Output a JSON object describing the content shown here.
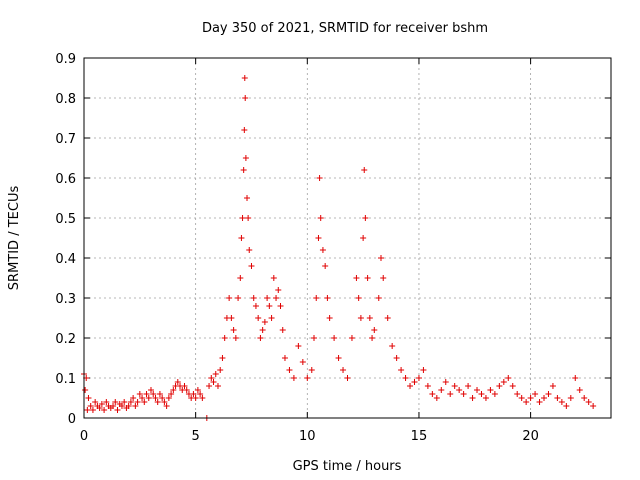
{
  "chart_data": {
    "type": "scatter",
    "title": "Day 350 of 2021, SRMTID for receiver bshm",
    "xlabel": "GPS time / hours",
    "ylabel": "SRMTID / TECUs",
    "xlim": [
      0,
      23.6
    ],
    "ylim": [
      0,
      0.9
    ],
    "x_ticks": [
      0,
      5,
      10,
      15,
      20
    ],
    "y_ticks": [
      0,
      0.1,
      0.2,
      0.3,
      0.4,
      0.5,
      0.6,
      0.7,
      0.8,
      0.9
    ],
    "x_tick_labels": [
      "0",
      "5",
      "10",
      "15",
      "20"
    ],
    "y_tick_labels": [
      "0",
      "0.1",
      "0.2",
      "0.3",
      "0.4",
      "0.5",
      "0.6",
      "0.7",
      "0.8",
      "0.9"
    ],
    "grid": true,
    "marker": "+",
    "color": "#e00000",
    "series": [
      {
        "name": "SRMTID",
        "points": [
          [
            0.0,
            0.11
          ],
          [
            0.05,
            0.07
          ],
          [
            0.1,
            0.1
          ],
          [
            0.15,
            0.02
          ],
          [
            0.2,
            0.05
          ],
          [
            0.3,
            0.03
          ],
          [
            0.4,
            0.02
          ],
          [
            0.5,
            0.04
          ],
          [
            0.6,
            0.03
          ],
          [
            0.7,
            0.025
          ],
          [
            0.8,
            0.035
          ],
          [
            0.9,
            0.02
          ],
          [
            1.0,
            0.04
          ],
          [
            1.1,
            0.03
          ],
          [
            1.2,
            0.025
          ],
          [
            1.3,
            0.03
          ],
          [
            1.4,
            0.04
          ],
          [
            1.5,
            0.02
          ],
          [
            1.6,
            0.035
          ],
          [
            1.7,
            0.03
          ],
          [
            1.8,
            0.04
          ],
          [
            1.9,
            0.025
          ],
          [
            2.0,
            0.03
          ],
          [
            2.1,
            0.04
          ],
          [
            2.2,
            0.05
          ],
          [
            2.3,
            0.03
          ],
          [
            2.4,
            0.04
          ],
          [
            2.5,
            0.06
          ],
          [
            2.6,
            0.05
          ],
          [
            2.7,
            0.04
          ],
          [
            2.8,
            0.06
          ],
          [
            2.9,
            0.05
          ],
          [
            3.0,
            0.07
          ],
          [
            3.1,
            0.06
          ],
          [
            3.2,
            0.05
          ],
          [
            3.3,
            0.04
          ],
          [
            3.4,
            0.06
          ],
          [
            3.5,
            0.05
          ],
          [
            3.6,
            0.04
          ],
          [
            3.7,
            0.03
          ],
          [
            3.8,
            0.05
          ],
          [
            3.9,
            0.06
          ],
          [
            4.0,
            0.07
          ],
          [
            4.1,
            0.08
          ],
          [
            4.2,
            0.09
          ],
          [
            4.3,
            0.08
          ],
          [
            4.4,
            0.07
          ],
          [
            4.5,
            0.08
          ],
          [
            4.6,
            0.07
          ],
          [
            4.7,
            0.06
          ],
          [
            4.8,
            0.05
          ],
          [
            4.9,
            0.06
          ],
          [
            5.0,
            0.05
          ],
          [
            5.1,
            0.07
          ],
          [
            5.2,
            0.06
          ],
          [
            5.3,
            0.05
          ],
          [
            5.5,
            0.0
          ],
          [
            5.6,
            0.08
          ],
          [
            5.7,
            0.1
          ],
          [
            5.8,
            0.09
          ],
          [
            5.9,
            0.11
          ],
          [
            6.0,
            0.08
          ],
          [
            6.1,
            0.12
          ],
          [
            6.2,
            0.15
          ],
          [
            6.3,
            0.2
          ],
          [
            6.4,
            0.25
          ],
          [
            6.5,
            0.3
          ],
          [
            6.6,
            0.25
          ],
          [
            6.7,
            0.22
          ],
          [
            6.8,
            0.2
          ],
          [
            6.9,
            0.3
          ],
          [
            7.0,
            0.35
          ],
          [
            7.05,
            0.45
          ],
          [
            7.1,
            0.5
          ],
          [
            7.15,
            0.62
          ],
          [
            7.18,
            0.72
          ],
          [
            7.2,
            0.85
          ],
          [
            7.22,
            0.8
          ],
          [
            7.25,
            0.65
          ],
          [
            7.3,
            0.55
          ],
          [
            7.35,
            0.5
          ],
          [
            7.4,
            0.42
          ],
          [
            7.5,
            0.38
          ],
          [
            7.6,
            0.3
          ],
          [
            7.7,
            0.28
          ],
          [
            7.8,
            0.25
          ],
          [
            7.9,
            0.2
          ],
          [
            8.0,
            0.22
          ],
          [
            8.1,
            0.24
          ],
          [
            8.2,
            0.3
          ],
          [
            8.3,
            0.28
          ],
          [
            8.4,
            0.25
          ],
          [
            8.5,
            0.35
          ],
          [
            8.6,
            0.3
          ],
          [
            8.7,
            0.32
          ],
          [
            8.8,
            0.28
          ],
          [
            8.9,
            0.22
          ],
          [
            9.0,
            0.15
          ],
          [
            9.2,
            0.12
          ],
          [
            9.4,
            0.1
          ],
          [
            9.6,
            0.18
          ],
          [
            9.8,
            0.14
          ],
          [
            10.0,
            0.1
          ],
          [
            10.2,
            0.12
          ],
          [
            10.3,
            0.2
          ],
          [
            10.4,
            0.3
          ],
          [
            10.5,
            0.45
          ],
          [
            10.55,
            0.6
          ],
          [
            10.6,
            0.5
          ],
          [
            10.7,
            0.42
          ],
          [
            10.8,
            0.38
          ],
          [
            10.9,
            0.3
          ],
          [
            11.0,
            0.25
          ],
          [
            11.2,
            0.2
          ],
          [
            11.4,
            0.15
          ],
          [
            11.6,
            0.12
          ],
          [
            11.8,
            0.1
          ],
          [
            12.0,
            0.2
          ],
          [
            12.2,
            0.35
          ],
          [
            12.3,
            0.3
          ],
          [
            12.4,
            0.25
          ],
          [
            12.5,
            0.45
          ],
          [
            12.55,
            0.62
          ],
          [
            12.6,
            0.5
          ],
          [
            12.7,
            0.35
          ],
          [
            12.8,
            0.25
          ],
          [
            12.9,
            0.2
          ],
          [
            13.0,
            0.22
          ],
          [
            13.2,
            0.3
          ],
          [
            13.3,
            0.4
          ],
          [
            13.4,
            0.35
          ],
          [
            13.6,
            0.25
          ],
          [
            13.8,
            0.18
          ],
          [
            14.0,
            0.15
          ],
          [
            14.2,
            0.12
          ],
          [
            14.4,
            0.1
          ],
          [
            14.6,
            0.08
          ],
          [
            14.8,
            0.09
          ],
          [
            15.0,
            0.1
          ],
          [
            15.2,
            0.12
          ],
          [
            15.4,
            0.08
          ],
          [
            15.6,
            0.06
          ],
          [
            15.8,
            0.05
          ],
          [
            16.0,
            0.07
          ],
          [
            16.2,
            0.09
          ],
          [
            16.4,
            0.06
          ],
          [
            16.6,
            0.08
          ],
          [
            16.8,
            0.07
          ],
          [
            17.0,
            0.06
          ],
          [
            17.2,
            0.08
          ],
          [
            17.4,
            0.05
          ],
          [
            17.6,
            0.07
          ],
          [
            17.8,
            0.06
          ],
          [
            18.0,
            0.05
          ],
          [
            18.2,
            0.07
          ],
          [
            18.4,
            0.06
          ],
          [
            18.6,
            0.08
          ],
          [
            18.8,
            0.09
          ],
          [
            19.0,
            0.1
          ],
          [
            19.2,
            0.08
          ],
          [
            19.4,
            0.06
          ],
          [
            19.6,
            0.05
          ],
          [
            19.8,
            0.04
          ],
          [
            20.0,
            0.05
          ],
          [
            20.2,
            0.06
          ],
          [
            20.4,
            0.04
          ],
          [
            20.6,
            0.05
          ],
          [
            20.8,
            0.06
          ],
          [
            21.0,
            0.08
          ],
          [
            21.2,
            0.05
          ],
          [
            21.4,
            0.04
          ],
          [
            21.6,
            0.03
          ],
          [
            21.8,
            0.05
          ],
          [
            22.0,
            0.1
          ],
          [
            22.2,
            0.07
          ],
          [
            22.4,
            0.05
          ],
          [
            22.6,
            0.04
          ],
          [
            22.8,
            0.03
          ]
        ]
      }
    ]
  }
}
